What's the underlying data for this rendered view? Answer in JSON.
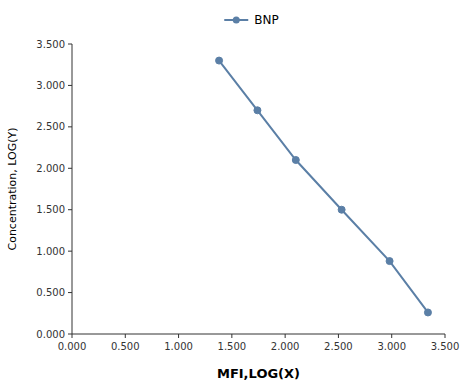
{
  "chart_data": {
    "type": "line",
    "x": [
      1.38,
      1.74,
      2.1,
      2.53,
      2.98,
      3.34
    ],
    "series": [
      {
        "name": "BNP",
        "color": "#5b7fa6",
        "marker": "circle",
        "values": [
          3.3,
          2.7,
          2.1,
          1.5,
          0.88,
          0.26
        ]
      }
    ],
    "x_label": "MFI,LOG(X)",
    "y_label": "Concentration, LOG(Y)",
    "xlim": [
      0.0,
      3.5
    ],
    "ylim": [
      0.0,
      3.5
    ],
    "xticks": [
      {
        "value": 0,
        "label": "0.000"
      },
      {
        "value": 0.5,
        "label": "0.500"
      },
      {
        "value": 1,
        "label": "1.000"
      },
      {
        "value": 1.5,
        "label": "1.500"
      },
      {
        "value": 2,
        "label": "2.000"
      },
      {
        "value": 2.5,
        "label": "2.500"
      },
      {
        "value": 3,
        "label": "3.000"
      },
      {
        "value": 3.5,
        "label": "3.500"
      }
    ],
    "yticks": [
      {
        "value": 0,
        "label": "0.000"
      },
      {
        "value": 0.5,
        "label": "0.500"
      },
      {
        "value": 1,
        "label": "1.000"
      },
      {
        "value": 1.5,
        "label": "1.500"
      },
      {
        "value": 2,
        "label": "2.000"
      },
      {
        "value": 2.5,
        "label": "2.500"
      },
      {
        "value": 3,
        "label": "3.000"
      },
      {
        "value": 3.5,
        "label": "3.500"
      }
    ],
    "grid": false,
    "legend": "top"
  }
}
